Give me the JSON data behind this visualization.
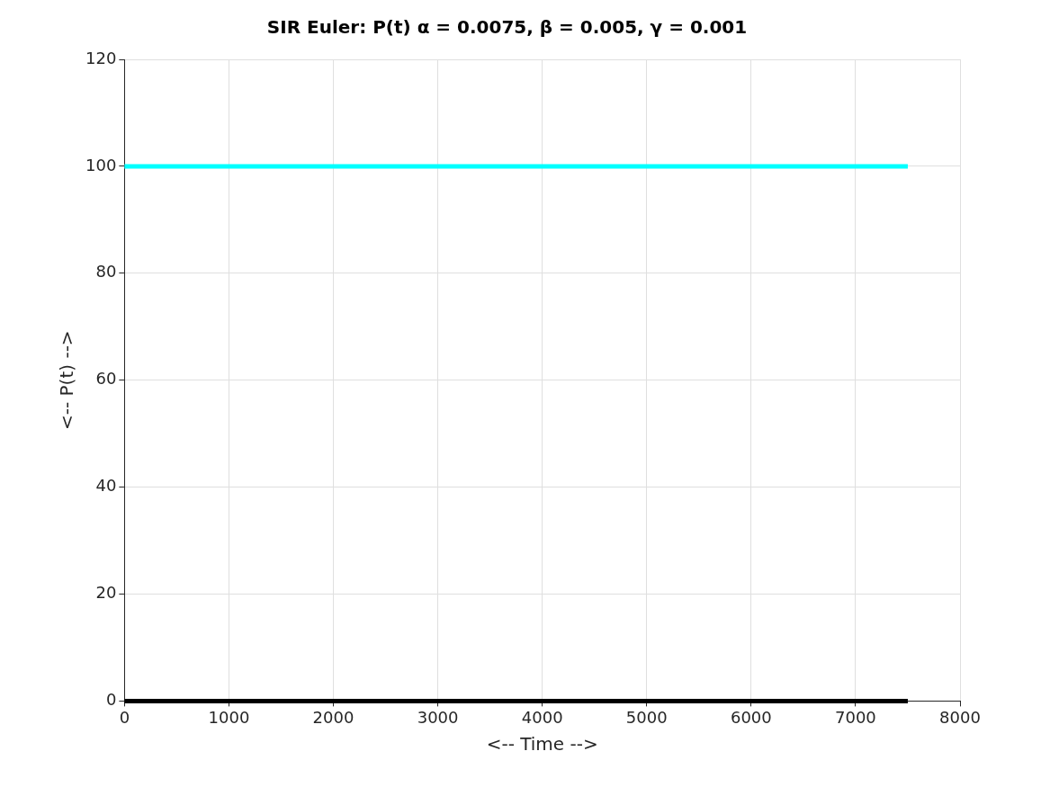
{
  "chart_data": {
    "type": "line",
    "title": "SIR Euler: P(t) α = 0.0075, β = 0.005, γ = 0.001",
    "xlabel": "<-- Time -->",
    "ylabel": "<-- P(t) -->",
    "x": [
      0,
      7500
    ],
    "series": [
      {
        "color": "#00ffff",
        "values": [
          100,
          100
        ]
      },
      {
        "color": "#000000",
        "values": [
          0,
          0
        ]
      }
    ],
    "xlim": [
      0,
      8000
    ],
    "xticks": [
      0,
      1000,
      2000,
      3000,
      4000,
      5000,
      6000,
      7000,
      8000
    ],
    "ylim": [
      0,
      120
    ],
    "yticks": [
      0,
      20,
      40,
      60,
      80,
      100,
      120
    ],
    "grid": true,
    "legend": false,
    "marker": "none",
    "line_style": "solid"
  }
}
